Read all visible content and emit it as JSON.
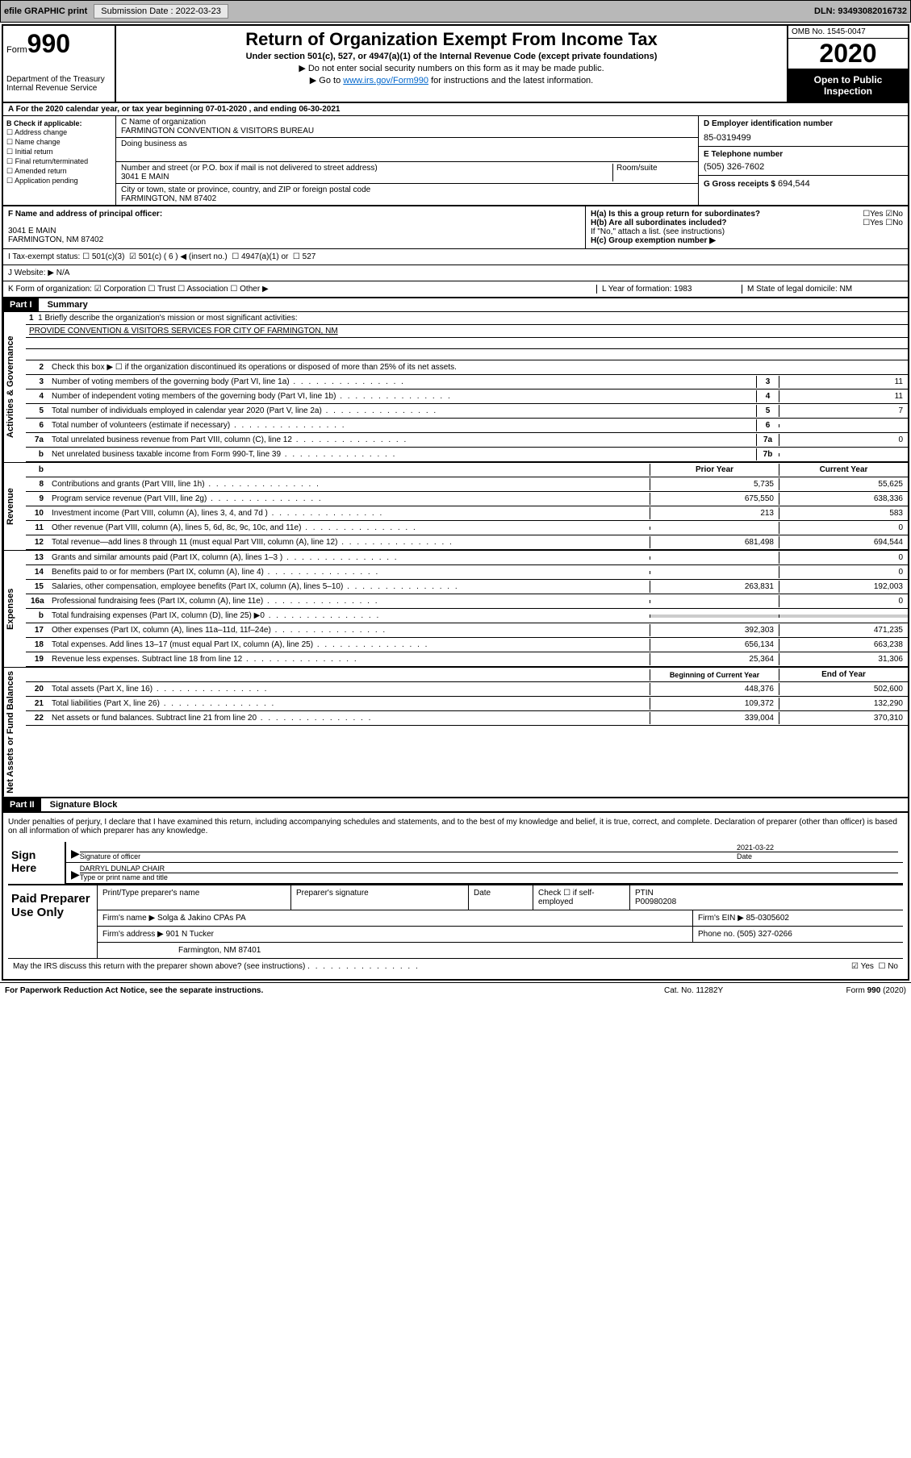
{
  "topbar": {
    "efile": "efile GRAPHIC print",
    "submission_label": "Submission Date : 2022-03-23",
    "dln": "DLN: 93493082016732"
  },
  "header": {
    "form_label": "Form",
    "form_number": "990",
    "dept": "Department of the Treasury\nInternal Revenue Service",
    "title": "Return of Organization Exempt From Income Tax",
    "subtitle": "Under section 501(c), 527, or 4947(a)(1) of the Internal Revenue Code (except private foundations)",
    "note1": "▶ Do not enter social security numbers on this form as it may be made public.",
    "note2_prefix": "▶ Go to ",
    "note2_link": "www.irs.gov/Form990",
    "note2_suffix": " for instructions and the latest information.",
    "omb": "OMB No. 1545-0047",
    "year": "2020",
    "open_public": "Open to Public Inspection"
  },
  "row_a": "A For the 2020 calendar year, or tax year beginning 07-01-2020    , and ending 06-30-2021",
  "section_b": {
    "label": "B Check if applicable:",
    "items": [
      "Address change",
      "Name change",
      "Initial return",
      "Final return/terminated",
      "Amended return",
      "Application pending"
    ]
  },
  "section_c": {
    "name_label": "C Name of organization",
    "name": "FARMINGTON CONVENTION & VISITORS BUREAU",
    "dba_label": "Doing business as",
    "dba": "",
    "street_label": "Number and street (or P.O. box if mail is not delivered to street address)",
    "room_label": "Room/suite",
    "street": "3041 E MAIN",
    "city_label": "City or town, state or province, country, and ZIP or foreign postal code",
    "city": "FARMINGTON, NM  87402"
  },
  "section_d": {
    "ein_label": "D Employer identification number",
    "ein": "85-0319499",
    "phone_label": "E Telephone number",
    "phone": "(505) 326-7602",
    "gross_label": "G Gross receipts $",
    "gross": "694,544"
  },
  "section_f": {
    "label": "F Name and address of principal officer:",
    "addr1": "3041 E MAIN",
    "addr2": "FARMINGTON, NM  87402"
  },
  "section_h": {
    "ha": "H(a)  Is this a group return for subordinates?",
    "hb": "H(b)  Are all subordinates included?",
    "hb_note": "If \"No,\" attach a list. (see instructions)",
    "hc": "H(c)  Group exemption number ▶"
  },
  "row_i": {
    "label": "I   Tax-exempt status:",
    "opts": [
      "501(c)(3)",
      "501(c) ( 6 ) ◀ (insert no.)",
      "4947(a)(1) or",
      "527"
    ]
  },
  "row_j": "J   Website: ▶  N/A",
  "row_k": {
    "label": "K Form of organization:",
    "opts": [
      "Corporation",
      "Trust",
      "Association",
      "Other ▶"
    ],
    "l": "L Year of formation: 1983",
    "m": "M State of legal domicile: NM"
  },
  "part1": {
    "header": "Part I",
    "title": "Summary",
    "line1_label": "1   Briefly describe the organization's mission or most significant activities:",
    "line1_text": "PROVIDE CONVENTION & VISITORS SERVICES FOR CITY OF FARMINGTON, NM",
    "line2": "Check this box ▶ ☐  if the organization discontinued its operations or disposed of more than 25% of its net assets.",
    "lines_gov": [
      {
        "n": "3",
        "t": "Number of voting members of the governing body (Part VI, line 1a)",
        "b": "3",
        "v": "11"
      },
      {
        "n": "4",
        "t": "Number of independent voting members of the governing body (Part VI, line 1b)",
        "b": "4",
        "v": "11"
      },
      {
        "n": "5",
        "t": "Total number of individuals employed in calendar year 2020 (Part V, line 2a)",
        "b": "5",
        "v": "7"
      },
      {
        "n": "6",
        "t": "Total number of volunteers (estimate if necessary)",
        "b": "6",
        "v": ""
      },
      {
        "n": "7a",
        "t": "Total unrelated business revenue from Part VIII, column (C), line 12",
        "b": "7a",
        "v": "0"
      },
      {
        "n": "b",
        "t": "Net unrelated business taxable income from Form 990-T, line 39",
        "b": "7b",
        "v": ""
      }
    ],
    "col_prior": "Prior Year",
    "col_current": "Current Year",
    "revenue": [
      {
        "n": "8",
        "t": "Contributions and grants (Part VIII, line 1h)",
        "p": "5,735",
        "c": "55,625"
      },
      {
        "n": "9",
        "t": "Program service revenue (Part VIII, line 2g)",
        "p": "675,550",
        "c": "638,336"
      },
      {
        "n": "10",
        "t": "Investment income (Part VIII, column (A), lines 3, 4, and 7d )",
        "p": "213",
        "c": "583"
      },
      {
        "n": "11",
        "t": "Other revenue (Part VIII, column (A), lines 5, 6d, 8c, 9c, 10c, and 11e)",
        "p": "",
        "c": "0"
      },
      {
        "n": "12",
        "t": "Total revenue—add lines 8 through 11 (must equal Part VIII, column (A), line 12)",
        "p": "681,498",
        "c": "694,544"
      }
    ],
    "expenses": [
      {
        "n": "13",
        "t": "Grants and similar amounts paid (Part IX, column (A), lines 1–3 )",
        "p": "",
        "c": "0"
      },
      {
        "n": "14",
        "t": "Benefits paid to or for members (Part IX, column (A), line 4)",
        "p": "",
        "c": "0"
      },
      {
        "n": "15",
        "t": "Salaries, other compensation, employee benefits (Part IX, column (A), lines 5–10)",
        "p": "263,831",
        "c": "192,003"
      },
      {
        "n": "16a",
        "t": "Professional fundraising fees (Part IX, column (A), line 11e)",
        "p": "",
        "c": "0"
      },
      {
        "n": "b",
        "t": "Total fundraising expenses (Part IX, column (D), line 25) ▶0",
        "p": "shaded",
        "c": "shaded"
      },
      {
        "n": "17",
        "t": "Other expenses (Part IX, column (A), lines 11a–11d, 11f–24e)",
        "p": "392,303",
        "c": "471,235"
      },
      {
        "n": "18",
        "t": "Total expenses. Add lines 13–17 (must equal Part IX, column (A), line 25)",
        "p": "656,134",
        "c": "663,238"
      },
      {
        "n": "19",
        "t": "Revenue less expenses. Subtract line 18 from line 12",
        "p": "25,364",
        "c": "31,306"
      }
    ],
    "col_beg": "Beginning of Current Year",
    "col_end": "End of Year",
    "netassets": [
      {
        "n": "20",
        "t": "Total assets (Part X, line 16)",
        "p": "448,376",
        "c": "502,600"
      },
      {
        "n": "21",
        "t": "Total liabilities (Part X, line 26)",
        "p": "109,372",
        "c": "132,290"
      },
      {
        "n": "22",
        "t": "Net assets or fund balances. Subtract line 21 from line 20",
        "p": "339,004",
        "c": "370,310"
      }
    ],
    "side_gov": "Activities & Governance",
    "side_rev": "Revenue",
    "side_exp": "Expenses",
    "side_net": "Net Assets or Fund Balances"
  },
  "part2": {
    "header": "Part II",
    "title": "Signature Block",
    "decl": "Under penalties of perjury, I declare that I have examined this return, including accompanying schedules and statements, and to the best of my knowledge and belief, it is true, correct, and complete. Declaration of preparer (other than officer) is based on all information of which preparer has any knowledge.",
    "sign_here": "Sign Here",
    "sig_officer": "Signature of officer",
    "sig_date": "2021-03-22",
    "date_label": "Date",
    "officer_name": "DARRYL DUNLAP  CHAIR",
    "type_label": "Type or print name and title",
    "paid_prep": "Paid Preparer Use Only",
    "prep_name_label": "Print/Type preparer's name",
    "prep_sig_label": "Preparer's signature",
    "prep_date_label": "Date",
    "self_emp": "Check ☐ if self-employed",
    "ptin_label": "PTIN",
    "ptin": "P00980208",
    "firm_name_label": "Firm's name      ▶",
    "firm_name": "Solga & Jakino CPAs PA",
    "firm_ein_label": "Firm's EIN ▶",
    "firm_ein": "85-0305602",
    "firm_addr_label": "Firm's address ▶",
    "firm_addr": "901 N Tucker",
    "firm_city": "Farmington, NM  87401",
    "phone_label": "Phone no.",
    "phone": "(505) 327-0266",
    "discuss": "May the IRS discuss this return with the preparer shown above? (see instructions)",
    "yes": "Yes",
    "no": "No"
  },
  "footer": {
    "left": "For Paperwork Reduction Act Notice, see the separate instructions.",
    "mid": "Cat. No. 11282Y",
    "right": "Form 990 (2020)"
  }
}
